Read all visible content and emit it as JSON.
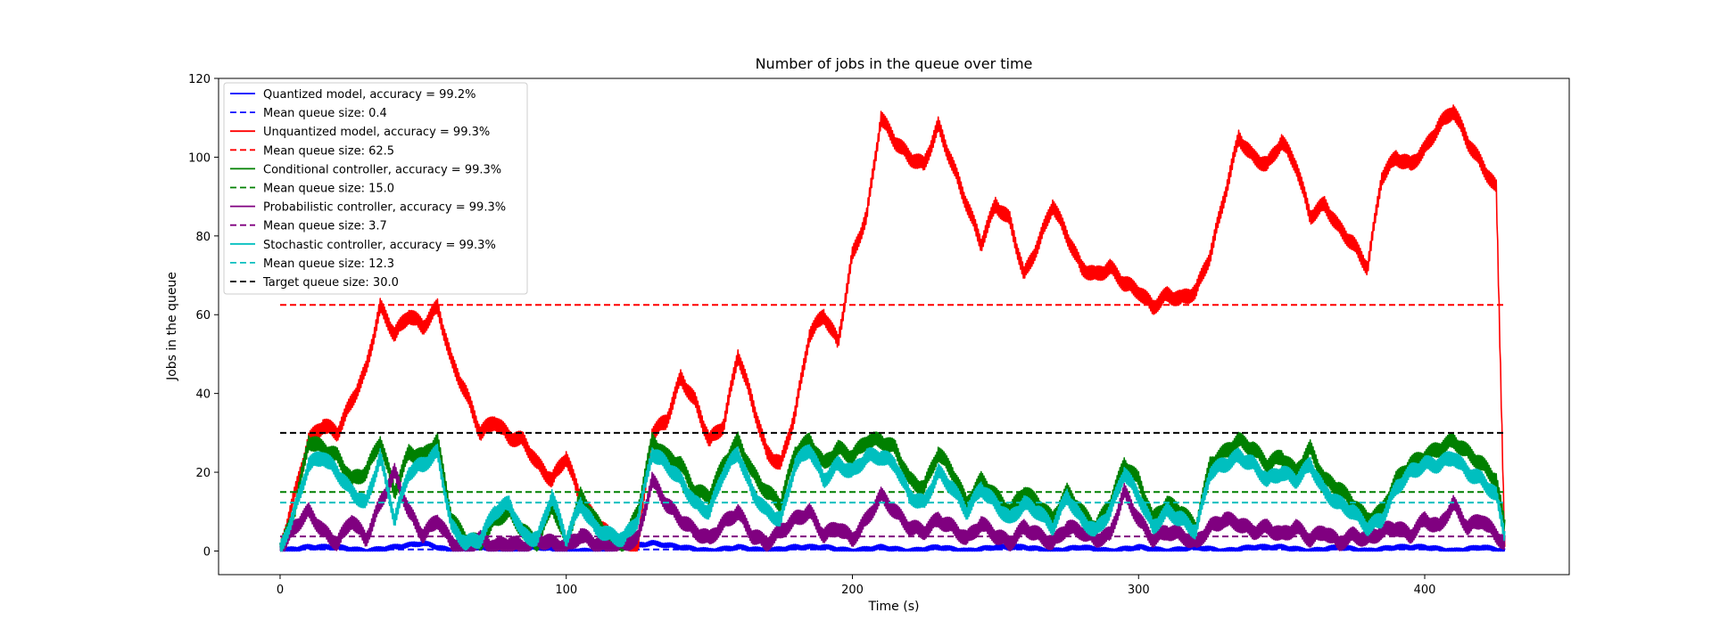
{
  "chart_data": {
    "type": "line",
    "title": "Number of jobs in the queue over time",
    "xlabel": "Time (s)",
    "ylabel": "Jobs in the queue",
    "xlim": [
      -21.5,
      450.5
    ],
    "ylim": [
      -6,
      120
    ],
    "xticks": [
      0,
      100,
      200,
      300,
      400
    ],
    "yticks": [
      0,
      20,
      40,
      60,
      80,
      100,
      120
    ],
    "grid": false,
    "legend_position": "top-left",
    "series": [
      {
        "name": "Quantized model, accuracy = 99.2%",
        "color": "#0000ff",
        "style": "solid",
        "x": [
          0,
          10,
          20,
          30,
          40,
          50,
          60,
          70,
          80,
          90,
          100,
          110,
          120,
          130,
          140,
          150,
          160,
          170,
          180,
          190,
          200,
          210,
          220,
          230,
          240,
          250,
          260,
          270,
          280,
          290,
          300,
          310,
          320,
          330,
          340,
          350,
          360,
          370,
          380,
          390,
          400,
          410,
          420,
          428
        ],
        "y": [
          0,
          1,
          1,
          0,
          1,
          2,
          0,
          1,
          0,
          1,
          0,
          0,
          1,
          2,
          1,
          0,
          1,
          0,
          1,
          1,
          0,
          1,
          0,
          1,
          0,
          1,
          1,
          0,
          1,
          0,
          1,
          0,
          1,
          0,
          1,
          1,
          0,
          1,
          0,
          1,
          1,
          0,
          1,
          0
        ]
      },
      {
        "name": "Mean queue size: 0.4",
        "color": "#0000ff",
        "style": "dashed",
        "x": [
          0,
          428
        ],
        "y": [
          0.4,
          0.4
        ]
      },
      {
        "name": "Unquantized model, accuracy = 99.3%",
        "color": "#ff0000",
        "style": "solid",
        "x": [
          0,
          10,
          15,
          20,
          25,
          30,
          35,
          40,
          45,
          50,
          55,
          60,
          65,
          70,
          75,
          80,
          85,
          90,
          95,
          100,
          105,
          110,
          115,
          120,
          125,
          130,
          135,
          140,
          145,
          150,
          155,
          160,
          165,
          170,
          175,
          180,
          185,
          190,
          195,
          200,
          205,
          210,
          215,
          220,
          225,
          230,
          235,
          240,
          245,
          250,
          255,
          260,
          265,
          270,
          275,
          280,
          285,
          290,
          295,
          300,
          305,
          310,
          315,
          320,
          325,
          330,
          335,
          340,
          345,
          350,
          355,
          360,
          365,
          370,
          375,
          380,
          385,
          390,
          395,
          400,
          405,
          410,
          415,
          420,
          425,
          428
        ],
        "y": [
          0,
          28,
          32,
          30,
          38,
          46,
          62,
          55,
          60,
          57,
          62,
          48,
          40,
          30,
          33,
          29,
          28,
          22,
          18,
          24,
          13,
          8,
          4,
          2,
          1,
          30,
          33,
          44,
          38,
          28,
          32,
          50,
          38,
          25,
          22,
          35,
          55,
          60,
          53,
          75,
          85,
          110,
          104,
          100,
          98,
          108,
          98,
          88,
          78,
          88,
          84,
          70,
          78,
          88,
          80,
          72,
          70,
          72,
          68,
          66,
          62,
          65,
          64,
          66,
          75,
          90,
          105,
          100,
          98,
          104,
          98,
          85,
          88,
          82,
          78,
          72,
          95,
          100,
          98,
          102,
          108,
          112,
          104,
          98,
          92,
          0
        ]
      },
      {
        "name": "Mean queue size: 62.5",
        "color": "#ff0000",
        "style": "dashed",
        "x": [
          0,
          428
        ],
        "y": [
          62.5,
          62.5
        ]
      },
      {
        "name": "Conditional controller, accuracy = 99.3%",
        "color": "#008000",
        "style": "solid",
        "x": [
          0,
          5,
          10,
          15,
          20,
          25,
          30,
          35,
          40,
          45,
          50,
          55,
          60,
          65,
          70,
          75,
          80,
          85,
          90,
          95,
          100,
          105,
          110,
          115,
          120,
          125,
          130,
          135,
          140,
          145,
          150,
          155,
          160,
          165,
          170,
          175,
          180,
          185,
          190,
          195,
          200,
          205,
          210,
          215,
          220,
          225,
          230,
          235,
          240,
          245,
          250,
          255,
          260,
          265,
          270,
          275,
          280,
          285,
          290,
          295,
          300,
          305,
          310,
          315,
          320,
          325,
          330,
          335,
          340,
          345,
          350,
          355,
          360,
          365,
          370,
          375,
          380,
          385,
          390,
          395,
          400,
          405,
          410,
          415,
          420,
          425,
          428
        ],
        "y": [
          0,
          10,
          28,
          26,
          24,
          18,
          20,
          28,
          15,
          25,
          24,
          28,
          8,
          3,
          2,
          8,
          10,
          5,
          2,
          12,
          2,
          14,
          8,
          3,
          2,
          10,
          28,
          24,
          22,
          15,
          14,
          22,
          28,
          20,
          15,
          12,
          25,
          28,
          22,
          26,
          24,
          28,
          28,
          26,
          18,
          16,
          25,
          20,
          12,
          18,
          14,
          10,
          15,
          12,
          8,
          15,
          10,
          6,
          12,
          22,
          18,
          8,
          12,
          10,
          6,
          22,
          25,
          28,
          26,
          22,
          24,
          20,
          26,
          18,
          16,
          12,
          8,
          10,
          18,
          22,
          24,
          26,
          28,
          25,
          22,
          18,
          6
        ]
      },
      {
        "name": "Mean queue size: 15.0",
        "color": "#008000",
        "style": "dashed",
        "x": [
          0,
          428
        ],
        "y": [
          15.0,
          15.0
        ]
      },
      {
        "name": "Probabilistic controller, accuracy = 99.3%",
        "color": "#800080",
        "style": "solid",
        "x": [
          0,
          5,
          10,
          15,
          20,
          25,
          30,
          35,
          40,
          45,
          50,
          55,
          60,
          65,
          70,
          75,
          80,
          85,
          90,
          95,
          100,
          105,
          110,
          115,
          120,
          125,
          130,
          135,
          140,
          145,
          150,
          155,
          160,
          165,
          170,
          175,
          180,
          185,
          190,
          195,
          200,
          205,
          210,
          215,
          220,
          225,
          230,
          235,
          240,
          245,
          250,
          255,
          260,
          265,
          270,
          275,
          280,
          285,
          290,
          295,
          300,
          305,
          310,
          315,
          320,
          325,
          330,
          335,
          340,
          345,
          350,
          355,
          360,
          365,
          370,
          375,
          380,
          385,
          390,
          395,
          400,
          405,
          410,
          415,
          420,
          425,
          428
        ],
        "y": [
          0,
          6,
          10,
          5,
          2,
          8,
          3,
          12,
          20,
          10,
          4,
          8,
          2,
          1,
          3,
          1,
          2,
          1,
          3,
          2,
          1,
          4,
          2,
          1,
          2,
          3,
          18,
          12,
          8,
          5,
          3,
          7,
          10,
          4,
          2,
          5,
          8,
          10,
          4,
          6,
          3,
          8,
          14,
          10,
          6,
          5,
          8,
          6,
          3,
          7,
          4,
          2,
          6,
          4,
          2,
          6,
          5,
          3,
          4,
          15,
          8,
          3,
          5,
          4,
          2,
          6,
          8,
          7,
          5,
          6,
          4,
          6,
          3,
          5,
          2,
          4,
          3,
          5,
          6,
          4,
          8,
          6,
          12,
          6,
          8,
          4,
          2
        ]
      },
      {
        "name": "Mean queue size: 3.7",
        "color": "#800080",
        "style": "dashed",
        "x": [
          0,
          428
        ],
        "y": [
          3.7,
          3.7
        ]
      },
      {
        "name": "Stochastic controller, accuracy = 99.3%",
        "color": "#00bfbf",
        "style": "solid",
        "x": [
          0,
          5,
          10,
          15,
          20,
          25,
          30,
          35,
          40,
          45,
          50,
          55,
          60,
          65,
          70,
          75,
          80,
          85,
          90,
          95,
          100,
          105,
          110,
          115,
          120,
          125,
          130,
          135,
          140,
          145,
          150,
          155,
          160,
          165,
          170,
          175,
          180,
          185,
          190,
          195,
          200,
          205,
          210,
          215,
          220,
          225,
          230,
          235,
          240,
          245,
          250,
          255,
          260,
          265,
          270,
          275,
          280,
          285,
          290,
          295,
          300,
          305,
          310,
          315,
          320,
          325,
          330,
          335,
          340,
          345,
          350,
          355,
          360,
          365,
          370,
          375,
          380,
          385,
          390,
          395,
          400,
          405,
          410,
          415,
          420,
          425,
          428
        ],
        "y": [
          0,
          10,
          22,
          24,
          20,
          15,
          12,
          24,
          8,
          20,
          22,
          25,
          6,
          2,
          3,
          10,
          12,
          4,
          3,
          14,
          3,
          12,
          6,
          4,
          3,
          8,
          25,
          22,
          18,
          12,
          10,
          20,
          25,
          15,
          10,
          8,
          22,
          26,
          18,
          22,
          20,
          24,
          24,
          22,
          14,
          12,
          20,
          16,
          10,
          16,
          12,
          8,
          12,
          10,
          6,
          14,
          8,
          5,
          10,
          20,
          14,
          6,
          10,
          8,
          5,
          20,
          22,
          24,
          22,
          18,
          20,
          18,
          22,
          15,
          12,
          10,
          6,
          8,
          16,
          20,
          22,
          22,
          24,
          20,
          18,
          14,
          4
        ]
      },
      {
        "name": "Mean queue size: 12.3",
        "color": "#00bfbf",
        "style": "dashed",
        "x": [
          0,
          428
        ],
        "y": [
          12.3,
          12.3
        ]
      },
      {
        "name": "Target queue size: 30.0",
        "color": "#000000",
        "style": "dashed",
        "x": [
          0,
          428
        ],
        "y": [
          30.0,
          30.0
        ]
      }
    ]
  }
}
